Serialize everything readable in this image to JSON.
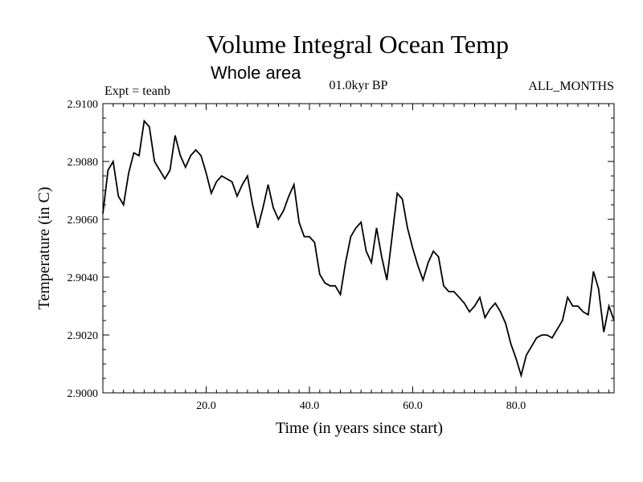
{
  "chart_data": {
    "type": "line",
    "title": "Volume Integral Ocean Temp",
    "subtitle": "Whole area",
    "header_left": "Expt = teanb",
    "header_center": "01.0kyr BP",
    "header_right": "ALL_MONTHS",
    "xlabel": "Time (in years since start)",
    "ylabel": "Temperature (in C)",
    "xlim": [
      0,
      99
    ],
    "ylim": [
      2.9,
      2.91
    ],
    "x_ticks": [
      20,
      40,
      60,
      80
    ],
    "x_tick_labels": [
      "20.0",
      "40.0",
      "60.0",
      "80.0"
    ],
    "y_ticks": [
      2.9,
      2.902,
      2.904,
      2.906,
      2.908,
      2.91
    ],
    "y_tick_labels": [
      "2.9000",
      "2.9020",
      "2.9040",
      "2.9060",
      "2.9080",
      "2.9100"
    ],
    "series": [
      {
        "name": "Volume Integral Ocean Temp",
        "x": [
          0,
          1,
          2,
          3,
          4,
          5,
          6,
          7,
          8,
          9,
          10,
          11,
          12,
          13,
          14,
          15,
          16,
          17,
          18,
          19,
          20,
          21,
          22,
          23,
          24,
          25,
          26,
          27,
          28,
          29,
          30,
          31,
          32,
          33,
          34,
          35,
          36,
          37,
          38,
          39,
          40,
          41,
          42,
          43,
          44,
          45,
          46,
          47,
          48,
          49,
          50,
          51,
          52,
          53,
          54,
          55,
          56,
          57,
          58,
          59,
          60,
          61,
          62,
          63,
          64,
          65,
          66,
          67,
          68,
          69,
          70,
          71,
          72,
          73,
          74,
          75,
          76,
          77,
          78,
          79,
          80,
          81,
          82,
          83,
          84,
          85,
          86,
          87,
          88,
          89,
          90,
          91,
          92,
          93,
          94,
          95,
          96,
          97,
          98,
          99
        ],
        "values": [
          2.9062,
          2.9077,
          2.908,
          2.9068,
          2.9065,
          2.9076,
          2.9083,
          2.9082,
          2.9094,
          2.9092,
          2.908,
          2.9077,
          2.9074,
          2.9077,
          2.9089,
          2.9082,
          2.9078,
          2.9082,
          2.9084,
          2.9082,
          2.9076,
          2.9069,
          2.9073,
          2.9075,
          2.9074,
          2.9073,
          2.9068,
          2.9072,
          2.9075,
          2.9065,
          2.9057,
          2.9064,
          2.9072,
          2.9064,
          2.906,
          2.9063,
          2.9068,
          2.9072,
          2.9059,
          2.9054,
          2.9054,
          2.9052,
          2.9041,
          2.9038,
          2.9037,
          2.9037,
          2.9034,
          2.9045,
          2.9054,
          2.9057,
          2.9059,
          2.9049,
          2.9045,
          2.9057,
          2.9047,
          2.9039,
          2.9054,
          2.9069,
          2.9067,
          2.9057,
          2.905,
          2.9044,
          2.9039,
          2.9045,
          2.9049,
          2.9047,
          2.9037,
          2.9035,
          2.9035,
          2.9033,
          2.9031,
          2.9028,
          2.903,
          2.9033,
          2.9026,
          2.9029,
          2.9031,
          2.9028,
          2.9024,
          2.9017,
          2.9012,
          2.9006,
          2.9013,
          2.9016,
          2.9019,
          2.902,
          2.902,
          2.9019,
          2.9022,
          2.9025,
          2.9033,
          2.903,
          2.903,
          2.9028,
          2.9027,
          2.9042,
          2.9036,
          2.9021,
          2.903,
          2.9025
        ]
      }
    ]
  }
}
